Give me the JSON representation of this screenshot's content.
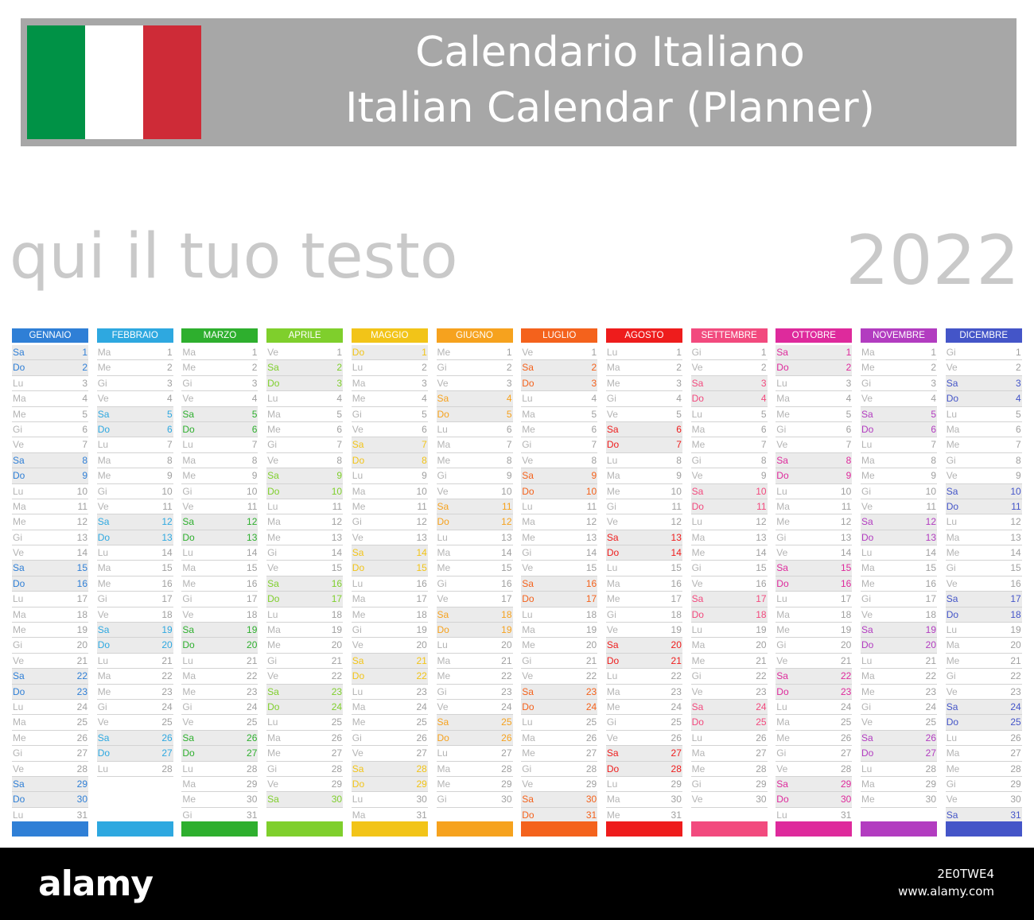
{
  "header": {
    "title_it": "Calendario Italiano",
    "title_en": "Italian Calendar (Planner)",
    "flag_colors": [
      "#009246",
      "#ffffff",
      "#ce2b37"
    ]
  },
  "placeholder_text": "qui il tuo testo",
  "year": "2022",
  "weekday_names": [
    "Lu",
    "Ma",
    "Me",
    "Gi",
    "Ve",
    "Sa",
    "Do"
  ],
  "colors": {
    "weekday_text": "#b4b4b4",
    "weekday_number": "#a0a0a0",
    "weekend_bg": "#ebebeb"
  },
  "months": [
    {
      "name": "GENNAIO",
      "days": 31,
      "first_weekday": 5,
      "color": "#2f7fd6"
    },
    {
      "name": "FEBBRAIO",
      "days": 28,
      "first_weekday": 1,
      "color": "#2ea8e0"
    },
    {
      "name": "MARZO",
      "days": 31,
      "first_weekday": 1,
      "color": "#2eaf2e"
    },
    {
      "name": "APRILE",
      "days": 30,
      "first_weekday": 4,
      "color": "#7fcf2c"
    },
    {
      "name": "MAGGIO",
      "days": 31,
      "first_weekday": 6,
      "color": "#f2c418"
    },
    {
      "name": "GIUGNO",
      "days": 30,
      "first_weekday": 2,
      "color": "#f6a21e"
    },
    {
      "name": "LUGLIO",
      "days": 31,
      "first_weekday": 4,
      "color": "#f4621c"
    },
    {
      "name": "AGOSTO",
      "days": 31,
      "first_weekday": 0,
      "color": "#ee1c1c"
    },
    {
      "name": "SETTEMBRE",
      "days": 30,
      "first_weekday": 3,
      "color": "#f24a7e"
    },
    {
      "name": "OTTOBRE",
      "days": 31,
      "first_weekday": 5,
      "color": "#de2a9c"
    },
    {
      "name": "NOVEMBRE",
      "days": 30,
      "first_weekday": 1,
      "color": "#b23cc0"
    },
    {
      "name": "DICEMBRE",
      "days": 31,
      "first_weekday": 3,
      "color": "#4455c8"
    }
  ],
  "footer": {
    "brand": "alamy",
    "image_id": "2E0TWE4",
    "site": "www.alamy.com"
  }
}
